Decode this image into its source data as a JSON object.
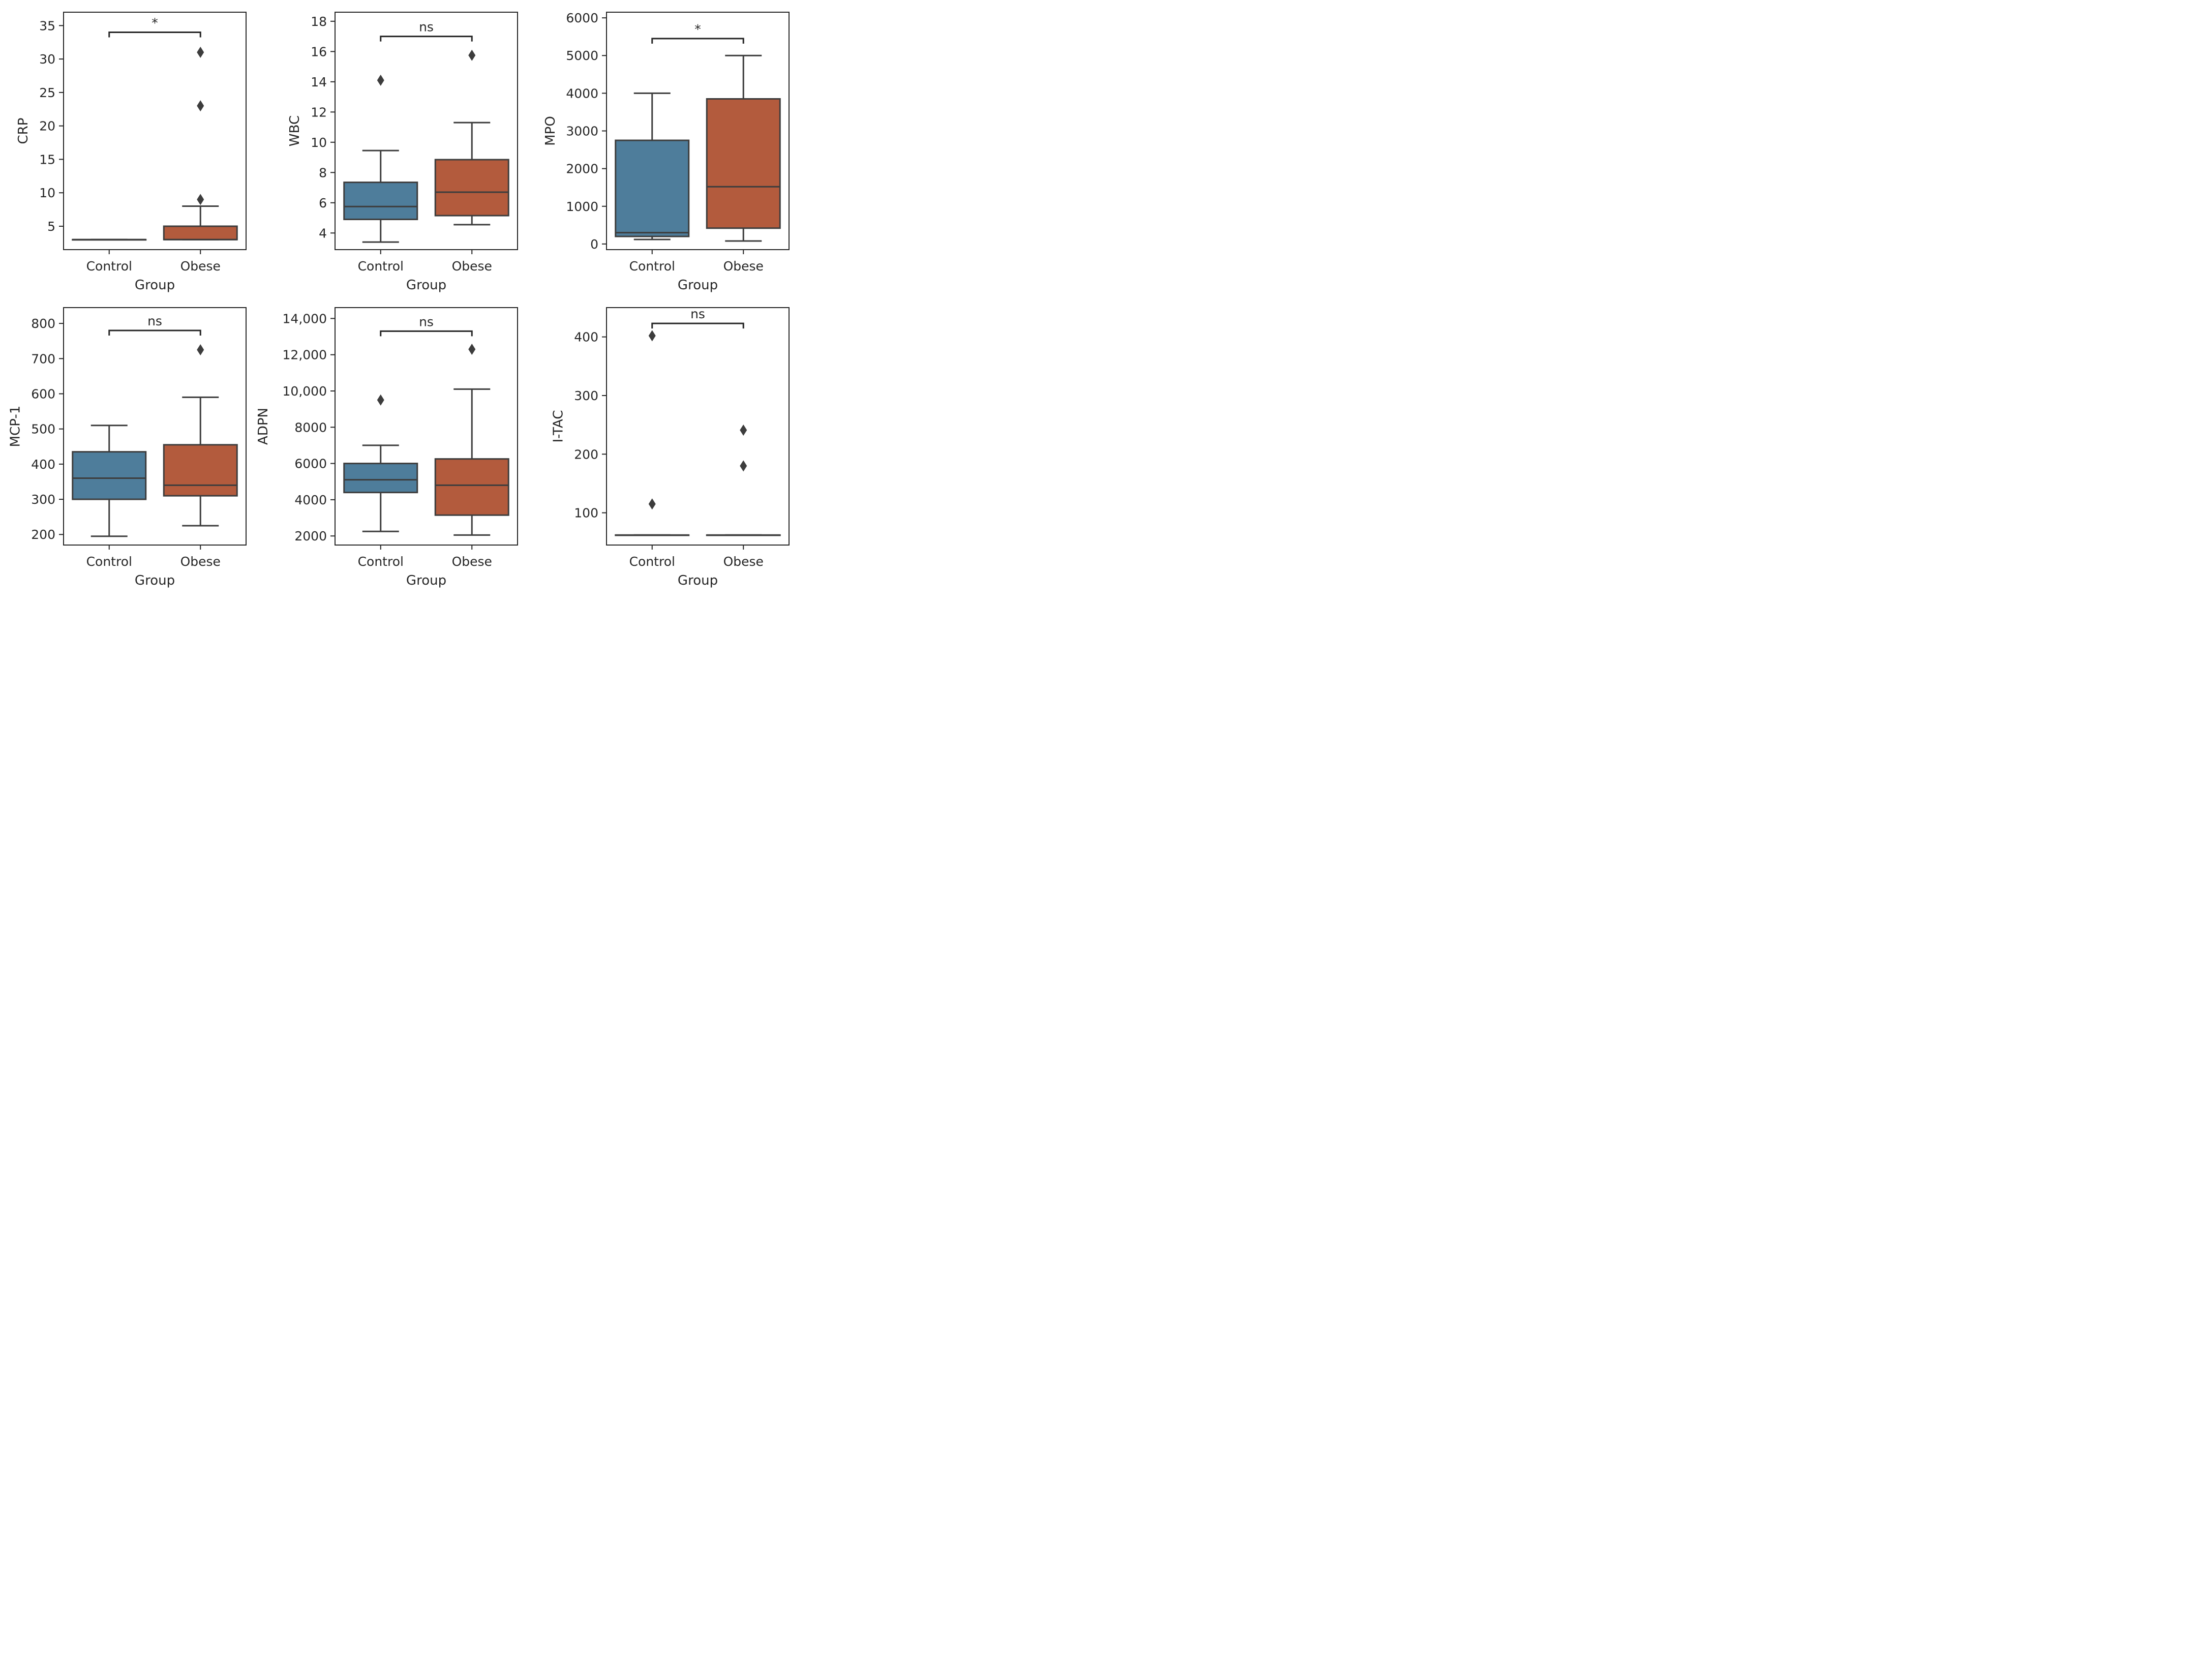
{
  "chart_data": [
    {
      "type": "box",
      "xlabel": "Group",
      "ylabel": "CRP",
      "categories": [
        "Control",
        "Obese"
      ],
      "ylim": [
        1.5,
        37
      ],
      "yticks": [
        5,
        10,
        15,
        20,
        25,
        30,
        35
      ],
      "ytick_labels": [
        "5",
        "10",
        "15",
        "20",
        "25",
        "30",
        "35"
      ],
      "colors": [
        "#4e7d9b",
        "#b35b3d"
      ],
      "boxes": [
        {
          "group": "Control",
          "min": 3.0,
          "q1": 3.0,
          "median": 3.0,
          "q3": 3.0,
          "max": 3.0,
          "fliers": []
        },
        {
          "group": "Obese",
          "min": 3.0,
          "q1": 3.0,
          "median": 3.0,
          "q3": 5.0,
          "max": 8.0,
          "fliers": [
            9.0,
            23.0,
            31.0
          ]
        }
      ],
      "annotation": {
        "text": "*",
        "y": 34.0
      }
    },
    {
      "type": "box",
      "xlabel": "Group",
      "ylabel": "WBC",
      "categories": [
        "Control",
        "Obese"
      ],
      "ylim": [
        2.9,
        18.6
      ],
      "yticks": [
        4,
        6,
        8,
        10,
        12,
        14,
        16,
        18
      ],
      "ytick_labels": [
        "4",
        "6",
        "8",
        "10",
        "12",
        "14",
        "16",
        "18"
      ],
      "colors": [
        "#4e7d9b",
        "#b35b3d"
      ],
      "boxes": [
        {
          "group": "Control",
          "min": 3.4,
          "q1": 4.9,
          "median": 5.75,
          "q3": 7.35,
          "max": 9.45,
          "fliers": [
            14.1
          ]
        },
        {
          "group": "Obese",
          "min": 4.55,
          "q1": 5.15,
          "median": 6.7,
          "q3": 8.85,
          "max": 11.3,
          "fliers": [
            15.75
          ]
        }
      ],
      "annotation": {
        "text": "ns",
        "y": 17.0
      }
    },
    {
      "type": "box",
      "xlabel": "Group",
      "ylabel": "MPO",
      "categories": [
        "Control",
        "Obese"
      ],
      "ylim": [
        -150,
        6150
      ],
      "yticks": [
        0,
        1000,
        2000,
        3000,
        4000,
        5000,
        6000
      ],
      "ytick_labels": [
        "0",
        "1000",
        "2000",
        "3000",
        "4000",
        "5000",
        "6000"
      ],
      "colors": [
        "#4e7d9b",
        "#b35b3d"
      ],
      "boxes": [
        {
          "group": "Control",
          "min": 120,
          "q1": 200,
          "median": 300,
          "q3": 2750,
          "max": 4000,
          "fliers": []
        },
        {
          "group": "Obese",
          "min": 80,
          "q1": 420,
          "median": 1520,
          "q3": 3850,
          "max": 5000,
          "fliers": []
        }
      ],
      "annotation": {
        "text": "*",
        "y": 5450
      }
    },
    {
      "type": "box",
      "xlabel": "Group",
      "ylabel": "MCP-1",
      "categories": [
        "Control",
        "Obese"
      ],
      "ylim": [
        170,
        845
      ],
      "yticks": [
        200,
        300,
        400,
        500,
        600,
        700,
        800
      ],
      "ytick_labels": [
        "200",
        "300",
        "400",
        "500",
        "600",
        "700",
        "800"
      ],
      "colors": [
        "#4e7d9b",
        "#b35b3d"
      ],
      "boxes": [
        {
          "group": "Control",
          "min": 195,
          "q1": 300,
          "median": 360,
          "q3": 435,
          "max": 510,
          "fliers": []
        },
        {
          "group": "Obese",
          "min": 225,
          "q1": 310,
          "median": 340,
          "q3": 455,
          "max": 590,
          "fliers": [
            725
          ]
        }
      ],
      "annotation": {
        "text": "ns",
        "y": 780
      }
    },
    {
      "type": "box",
      "xlabel": "Group",
      "ylabel": "ADPN",
      "categories": [
        "Control",
        "Obese"
      ],
      "ylim": [
        1500,
        14600
      ],
      "yticks": [
        2000,
        4000,
        6000,
        8000,
        10000,
        12000,
        14000
      ],
      "ytick_labels": [
        "2000",
        "4000",
        "6000",
        "8000",
        "10,000",
        "12,000",
        "14,000"
      ],
      "colors": [
        "#4e7d9b",
        "#b35b3d"
      ],
      "boxes": [
        {
          "group": "Control",
          "min": 2250,
          "q1": 4400,
          "median": 5100,
          "q3": 6000,
          "max": 7000,
          "fliers": [
            9500
          ]
        },
        {
          "group": "Obese",
          "min": 2050,
          "q1": 3150,
          "median": 4800,
          "q3": 6250,
          "max": 10100,
          "fliers": [
            12300
          ]
        }
      ],
      "annotation": {
        "text": "ns",
        "y": 13300
      }
    },
    {
      "type": "box",
      "xlabel": "Group",
      "ylabel": "I-TAC",
      "categories": [
        "Control",
        "Obese"
      ],
      "ylim": [
        45,
        450
      ],
      "yticks": [
        100,
        200,
        300,
        400
      ],
      "ytick_labels": [
        "100",
        "200",
        "300",
        "400"
      ],
      "colors": [
        "#4e7d9b",
        "#b35b3d"
      ],
      "boxes": [
        {
          "group": "Control",
          "min": 62,
          "q1": 62,
          "median": 62,
          "q3": 62,
          "max": 62,
          "fliers": [
            115,
            402
          ]
        },
        {
          "group": "Obese",
          "min": 62,
          "q1": 62,
          "median": 62,
          "q3": 62,
          "max": 62,
          "fliers": [
            180,
            241
          ]
        }
      ],
      "annotation": {
        "text": "ns",
        "y": 423
      }
    }
  ]
}
